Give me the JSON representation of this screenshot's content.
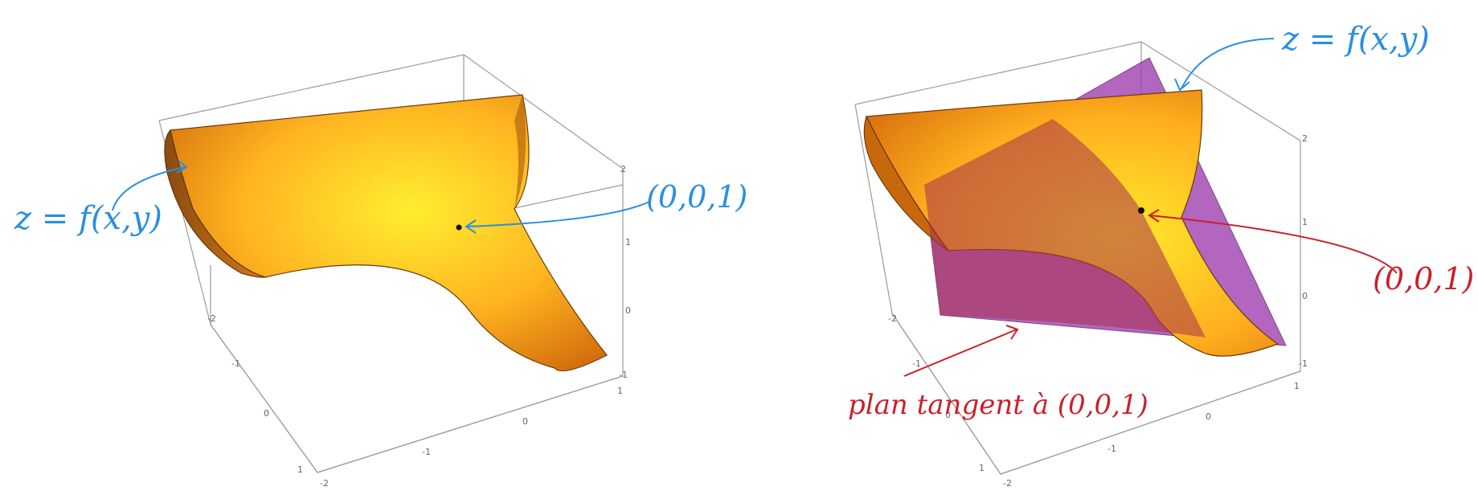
{
  "left_plot": {
    "annotation_surface": "z = f(x,y)",
    "annotation_point": "(0,0,1)",
    "z_ticks": [
      "2",
      "1",
      "0",
      "-1"
    ],
    "y_ticks": [
      "-2",
      "-1",
      "0",
      "1"
    ],
    "x_ticks": [
      "-2",
      "-1",
      "0",
      "1"
    ]
  },
  "right_plot": {
    "annotation_surface": "z = f(x,y)",
    "annotation_point": "(0,0,1)",
    "annotation_plane": "plan tangent à (0,0,1)",
    "z_ticks": [
      "2",
      "1",
      "0",
      "-1"
    ],
    "y_ticks": [
      "-2",
      "-1",
      "0",
      "1"
    ],
    "x_ticks": [
      "-2",
      "-1",
      "0",
      "1"
    ]
  },
  "colors": {
    "surface_light": "#ffe82a",
    "surface_mid": "#ffb020",
    "surface_dark": "#c66408",
    "plane": "#a040b0",
    "annotation_blue": "#2a8fe0",
    "annotation_red": "#cc1f2a"
  }
}
